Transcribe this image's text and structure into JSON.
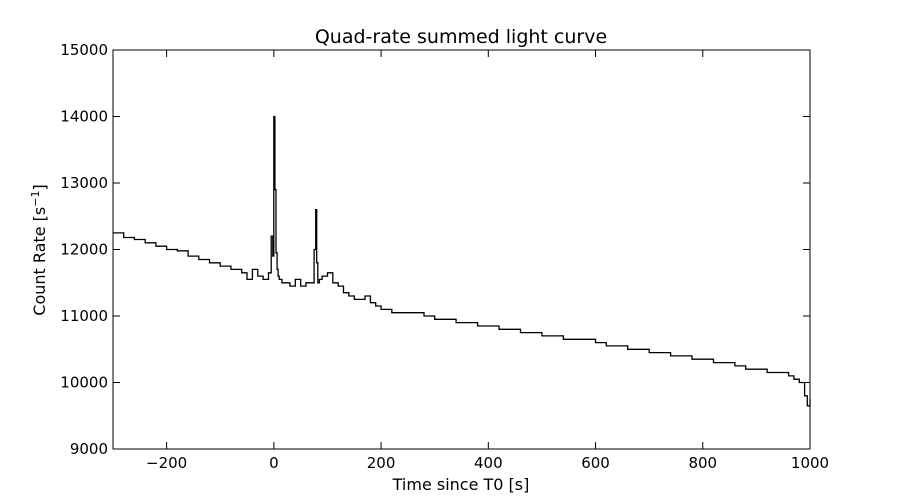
{
  "chart_data": {
    "type": "line",
    "title": "Quad-rate summed light curve",
    "xlabel": "Time since T0 [s]",
    "ylabel_main": "Count Rate [s",
    "ylabel_sup": "−1",
    "ylabel_tail": "]",
    "xlim": [
      -300,
      1000
    ],
    "ylim": [
      9000,
      15000
    ],
    "xticks": [
      -200,
      0,
      200,
      400,
      600,
      800,
      1000
    ],
    "xtick_labels": [
      "−200",
      "0",
      "200",
      "400",
      "600",
      "800",
      "1000"
    ],
    "yticks": [
      9000,
      10000,
      11000,
      12000,
      13000,
      14000,
      15000
    ],
    "ytick_labels": [
      "9000",
      "10000",
      "11000",
      "12000",
      "13000",
      "14000",
      "15000"
    ],
    "grid": false,
    "line_style": "steps",
    "line_color": "#000000",
    "series": [
      {
        "x": [
          -300,
          -280,
          -260,
          -240,
          -220,
          -200,
          -180,
          -160,
          -140,
          -120,
          -100,
          -80,
          -60,
          -50,
          -40,
          -30,
          -20,
          -10,
          -5,
          -2,
          0,
          2,
          4,
          6,
          8,
          10,
          15,
          20,
          30,
          40,
          50,
          60,
          70,
          75,
          78,
          80,
          82,
          85,
          90,
          100,
          110,
          120,
          130,
          140,
          150,
          160,
          170,
          180,
          190,
          200,
          220,
          240,
          260,
          280,
          300,
          320,
          340,
          360,
          380,
          400,
          420,
          440,
          460,
          480,
          500,
          520,
          540,
          560,
          580,
          600,
          620,
          640,
          660,
          680,
          700,
          720,
          740,
          760,
          780,
          800,
          820,
          840,
          860,
          880,
          900,
          920,
          940,
          960,
          970,
          980,
          990,
          995,
          1000
        ],
        "y": [
          12250,
          12180,
          12150,
          12100,
          12050,
          12000,
          11980,
          11900,
          11850,
          11800,
          11750,
          11700,
          11650,
          11550,
          11700,
          11600,
          11550,
          11650,
          12200,
          11900,
          14000,
          12900,
          11950,
          11700,
          11600,
          11550,
          11500,
          11500,
          11450,
          11550,
          11450,
          11500,
          11500,
          12000,
          12600,
          11800,
          11500,
          11550,
          11600,
          11650,
          11500,
          11450,
          11350,
          11300,
          11250,
          11250,
          11300,
          11200,
          11150,
          11100,
          11050,
          11050,
          11050,
          11000,
          10950,
          10950,
          10900,
          10900,
          10850,
          10850,
          10800,
          10800,
          10750,
          10750,
          10700,
          10700,
          10650,
          10650,
          10650,
          10600,
          10550,
          10550,
          10500,
          10500,
          10450,
          10450,
          10400,
          10400,
          10350,
          10350,
          10300,
          10300,
          10250,
          10200,
          10200,
          10150,
          10150,
          10100,
          10050,
          10000,
          9800,
          9650,
          9750
        ]
      }
    ]
  }
}
